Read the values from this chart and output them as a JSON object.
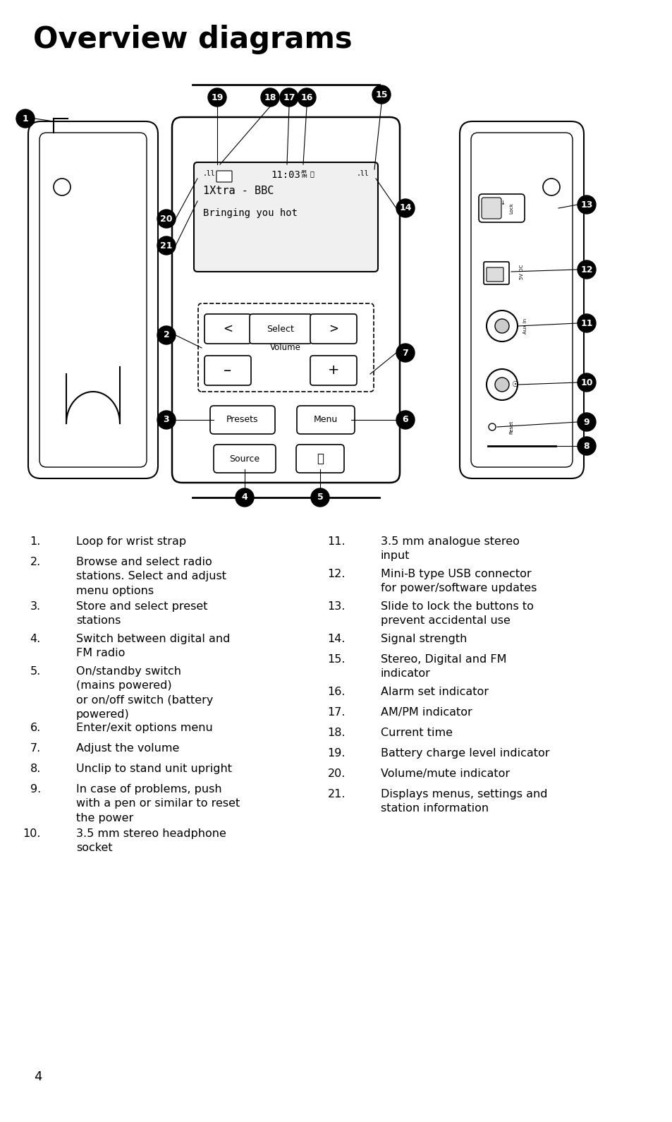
{
  "title": "Overview diagrams",
  "title_fontsize": 30,
  "title_fontweight": "bold",
  "bg_color": "#ffffff",
  "text_color": "#000000",
  "footer_number": "4",
  "left_items": [
    [
      "1.",
      "Loop for wrist strap"
    ],
    [
      "2.",
      "Browse and select radio\nstations. Select and adjust\nmenu options"
    ],
    [
      "3.",
      "Store and select preset\nstations"
    ],
    [
      "4.",
      "Switch between digital and\nFM radio"
    ],
    [
      "5.",
      "On/standby switch\n(mains powered)\nor on/off switch (battery\npowered)"
    ],
    [
      "6.",
      "Enter/exit options menu"
    ],
    [
      "7.",
      "Adjust the volume"
    ],
    [
      "8.",
      "Unclip to stand unit upright"
    ],
    [
      "9.",
      "In case of problems, push\nwith a pen or similar to reset\nthe power"
    ],
    [
      "10.",
      "3.5 mm stereo headphone\nsocket"
    ]
  ],
  "right_items": [
    [
      "11.",
      "3.5 mm analogue stereo\ninput"
    ],
    [
      "12.",
      "Mini-B type USB connector\nfor power/software updates"
    ],
    [
      "13.",
      "Slide to lock the buttons to\nprevent accidental use"
    ],
    [
      "14.",
      "Signal strength"
    ],
    [
      "15.",
      "Stereo, Digital and FM\nindicator"
    ],
    [
      "16.",
      "Alarm set indicator"
    ],
    [
      "17.",
      "AM/PM indicator"
    ],
    [
      "18.",
      "Current time"
    ],
    [
      "19.",
      "Battery charge level indicator"
    ],
    [
      "20.",
      "Volume/mute indicator"
    ],
    [
      "21.",
      "Displays menus, settings and\nstation information"
    ]
  ]
}
